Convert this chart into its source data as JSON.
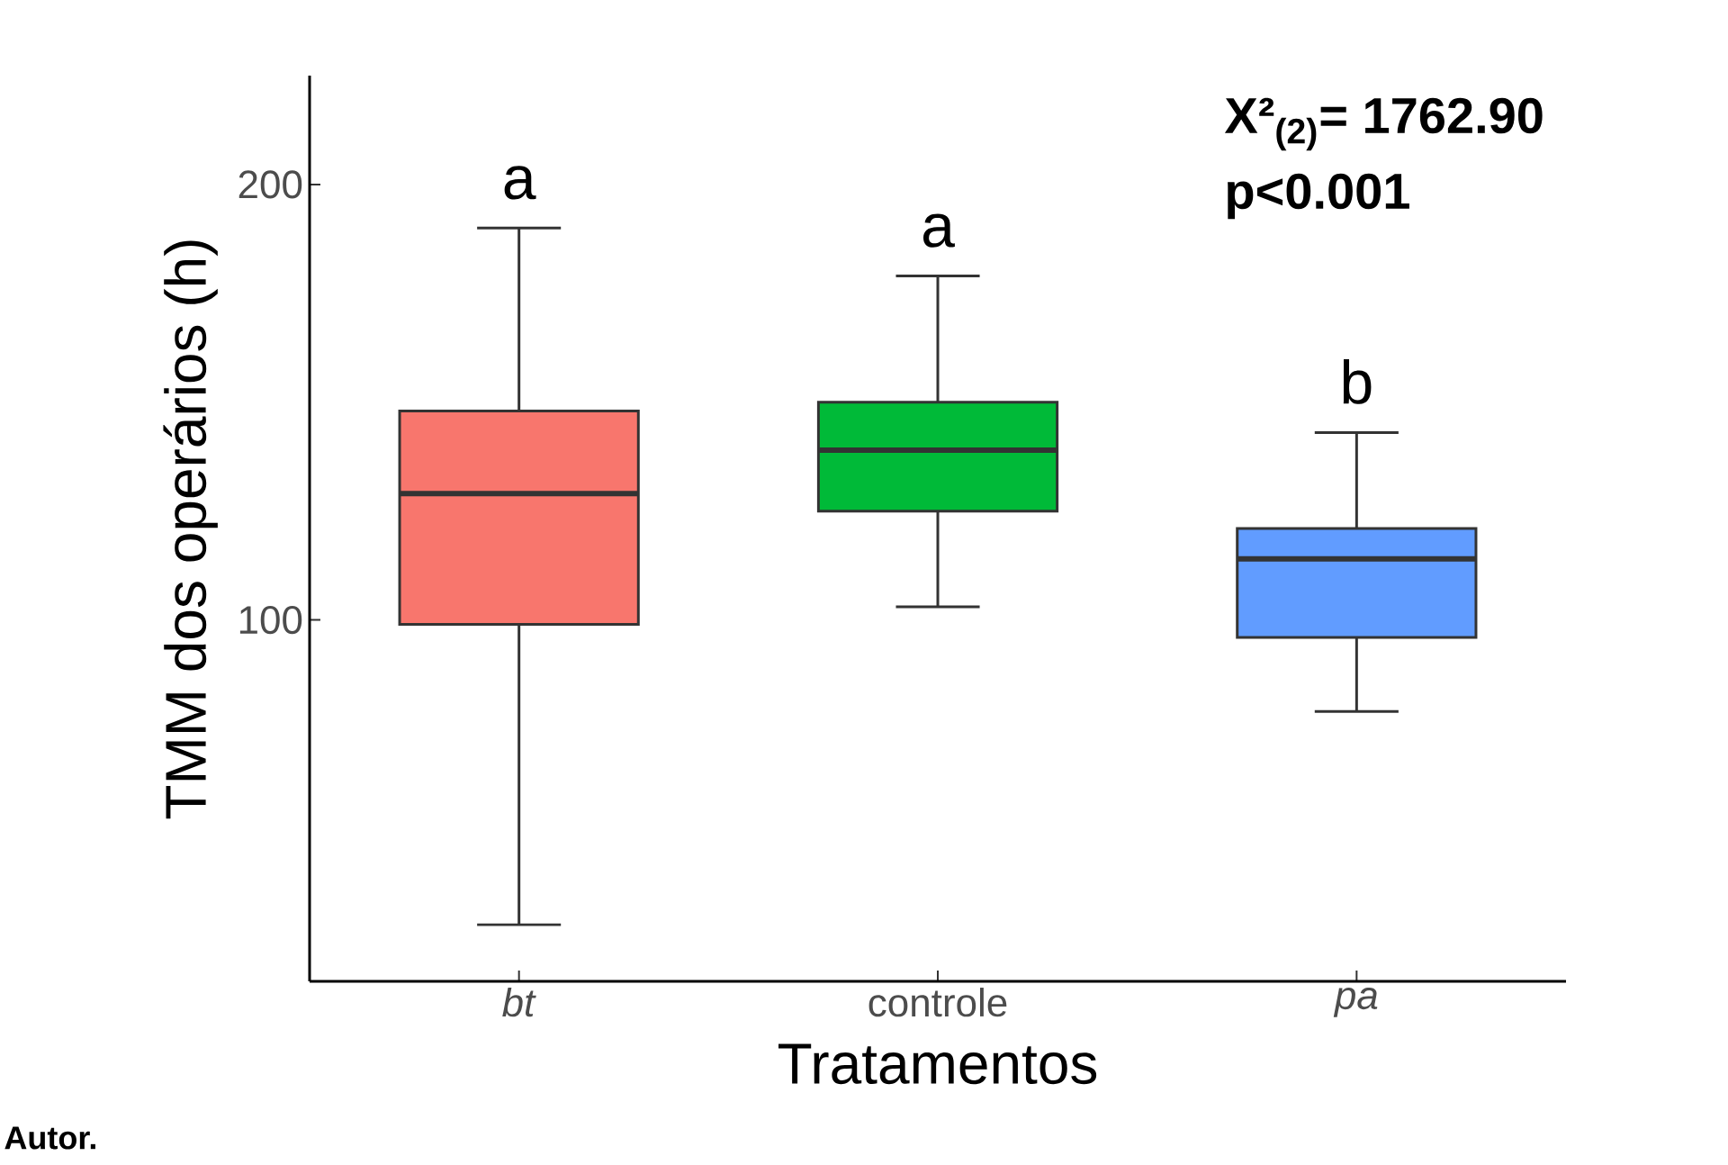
{
  "chart_data": {
    "type": "box",
    "categories": [
      "*bt*",
      "controle",
      "*pa*"
    ],
    "boxes": [
      {
        "low": 30,
        "q1": 99,
        "median": 129,
        "q3": 148,
        "high": 190
      },
      {
        "low": 103,
        "q1": 125,
        "median": 139,
        "q3": 150,
        "high": 179
      },
      {
        "low": 79,
        "q1": 96,
        "median": 114,
        "q3": 121,
        "high": 143
      }
    ],
    "colors": [
      "#f8766d",
      "#00ba38",
      "#619cff"
    ],
    "xlabel": "Tratamentos",
    "ylabel": "TMM dos operários (h)",
    "ylim": [
      17,
      225
    ],
    "yticks": [
      100,
      200
    ],
    "grid": false,
    "annotations": [
      "a",
      "a",
      "b",
      "**X²$_{(2)}$= 1762.90**",
      "**p<0.001**",
      "**Autor.**"
    ]
  }
}
